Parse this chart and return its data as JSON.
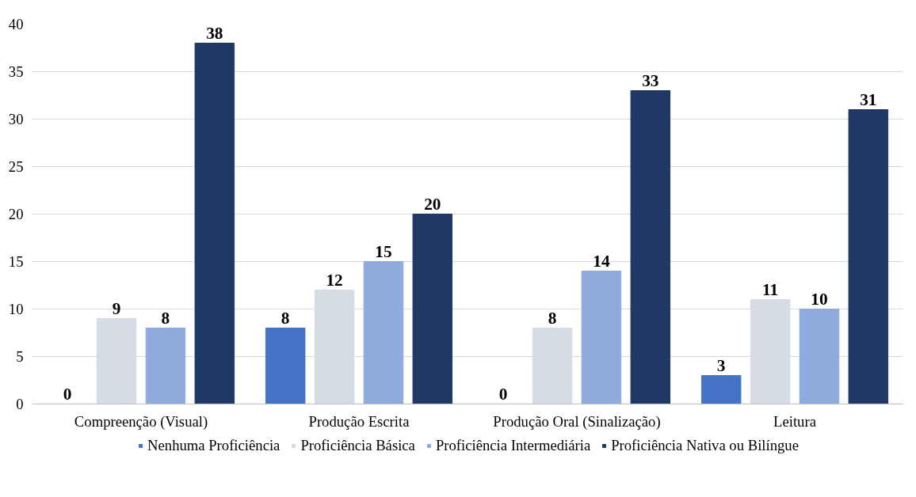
{
  "chart_data": {
    "type": "bar",
    "categories": [
      "Compreenção (Visual)",
      "Produção Escrita",
      "Produção Oral (Sinalização)",
      "Leitura"
    ],
    "series": [
      {
        "name": "Nenhuma Proficiência",
        "color": "#4472c4",
        "values": [
          0,
          8,
          0,
          3
        ]
      },
      {
        "name": "Proficiência Básica",
        "color": "#d6dce4",
        "values": [
          9,
          12,
          8,
          11
        ]
      },
      {
        "name": "Proficiência Intermediária",
        "color": "#8faadc",
        "values": [
          8,
          15,
          14,
          10
        ]
      },
      {
        "name": "Proficiência Nativa ou Bilíngue",
        "color": "#203864",
        "values": [
          38,
          20,
          33,
          31
        ]
      }
    ],
    "ylim": [
      0,
      40
    ],
    "yticks": [
      0,
      5,
      10,
      15,
      20,
      25,
      30,
      35,
      40
    ],
    "grid": "y",
    "legend": "bottom",
    "data_labels": true
  }
}
